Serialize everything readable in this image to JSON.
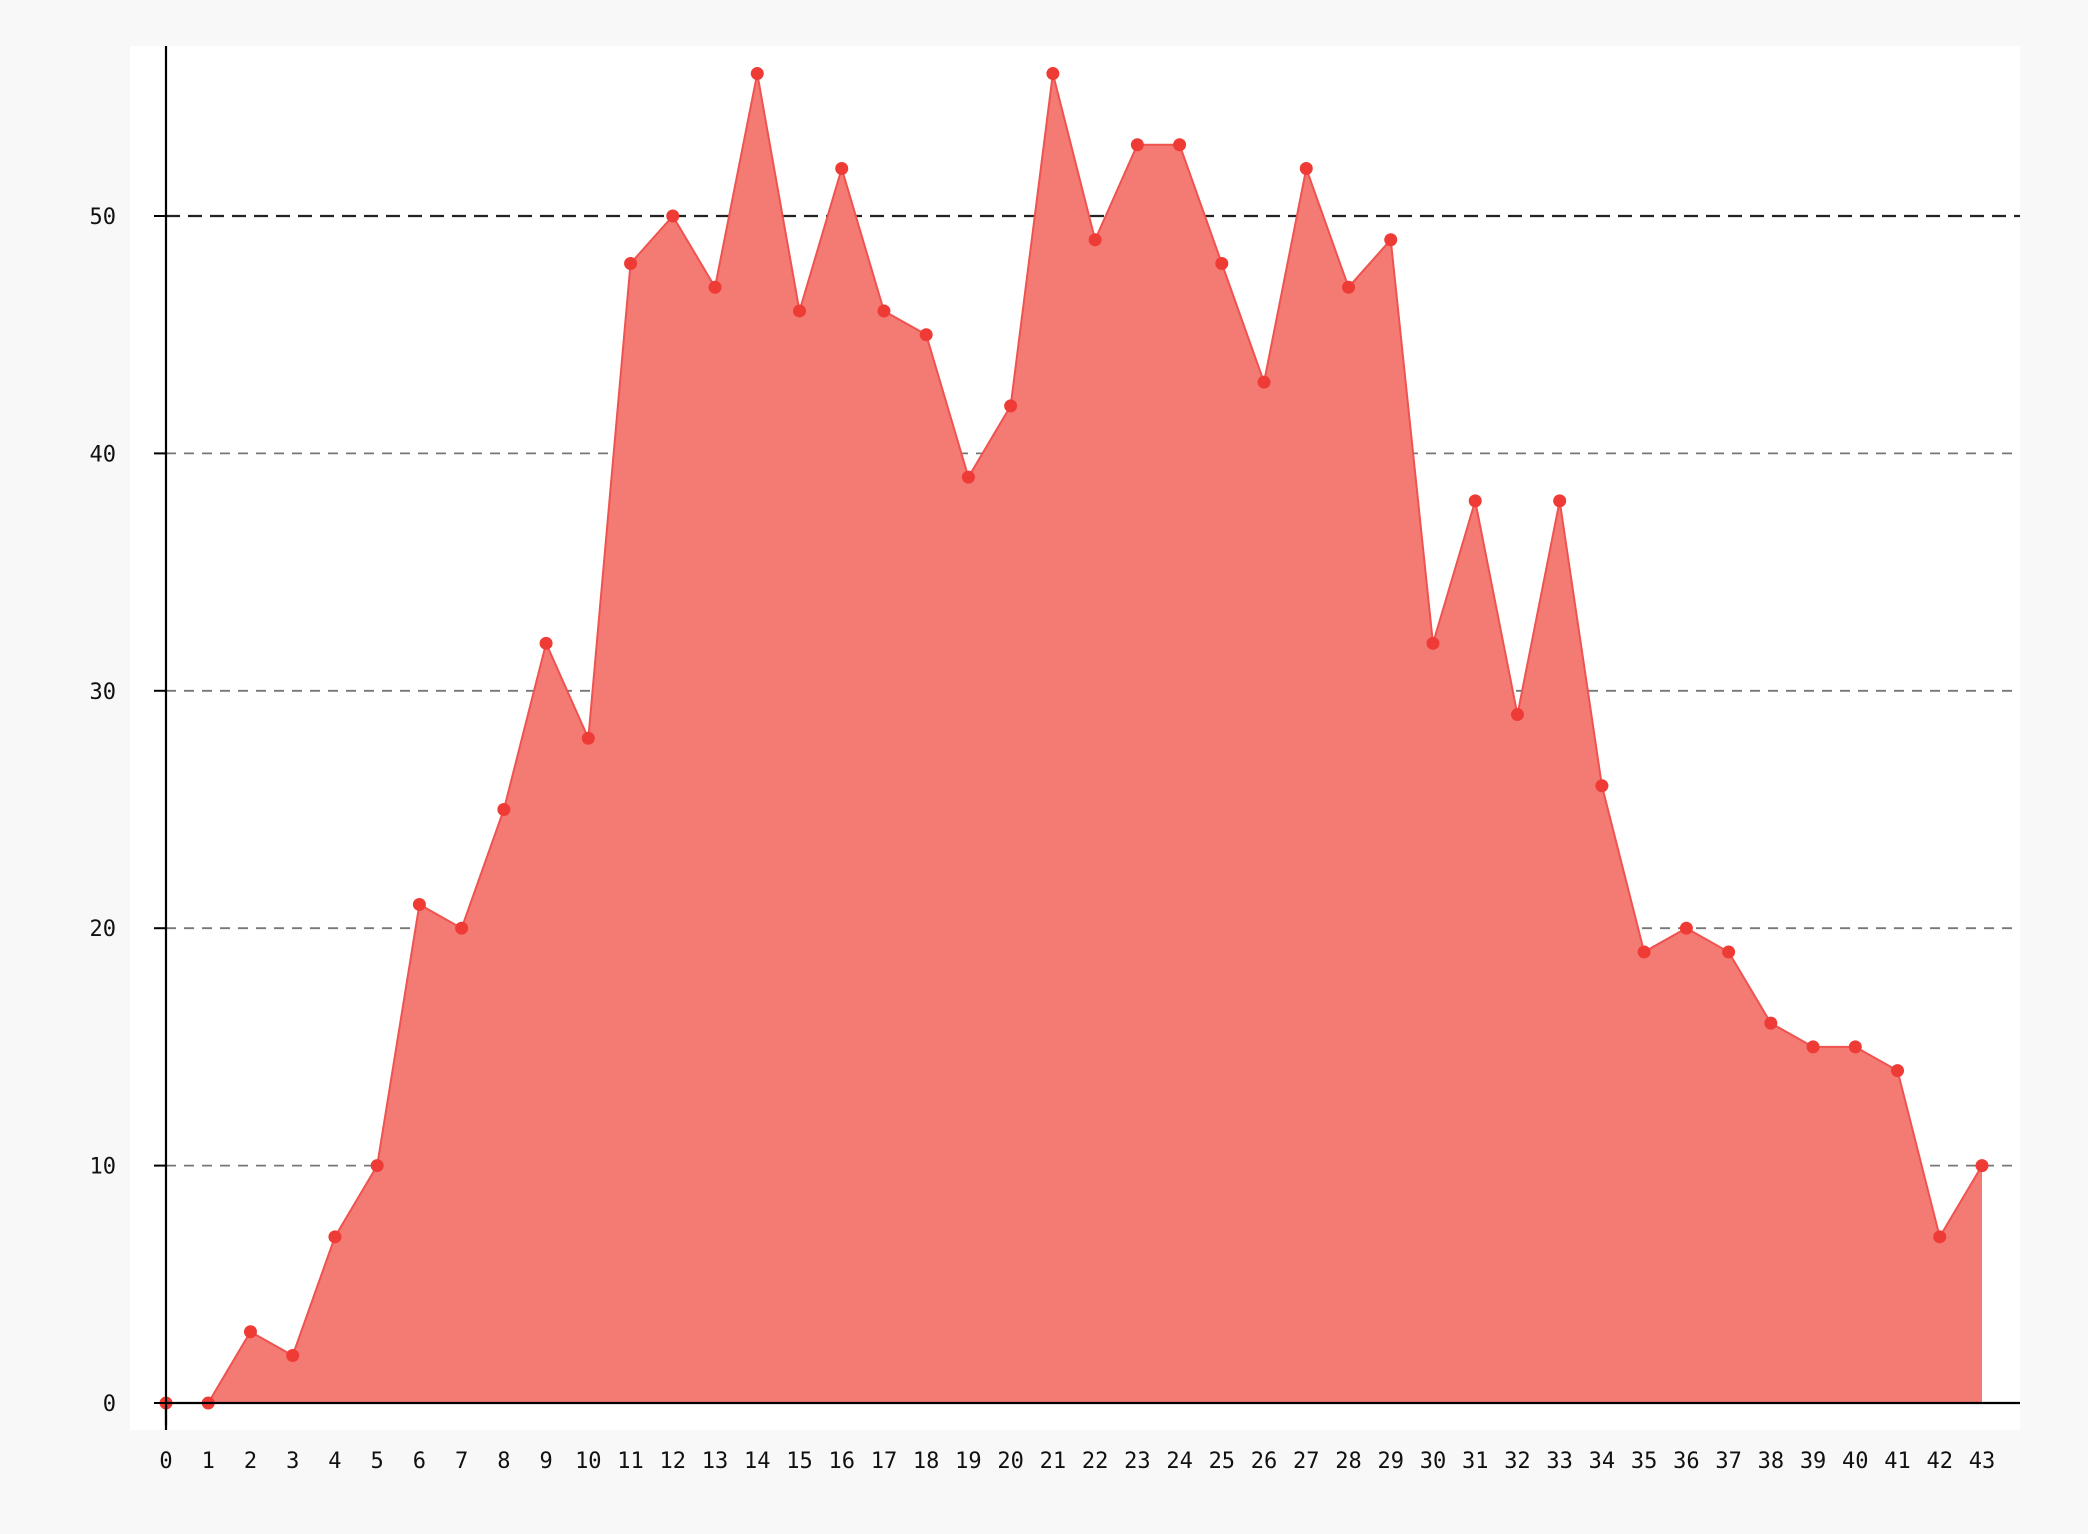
{
  "chart_data": {
    "type": "area",
    "x": [
      0,
      1,
      2,
      3,
      4,
      5,
      6,
      7,
      8,
      9,
      10,
      11,
      12,
      13,
      14,
      15,
      16,
      17,
      18,
      19,
      20,
      21,
      22,
      23,
      24,
      25,
      26,
      27,
      28,
      29,
      30,
      31,
      32,
      33,
      34,
      35,
      36,
      37,
      38,
      39,
      40,
      41,
      42,
      43
    ],
    "categories": [
      "0",
      "1",
      "2",
      "3",
      "4",
      "5",
      "6",
      "7",
      "8",
      "9",
      "10",
      "11",
      "12",
      "13",
      "14",
      "15",
      "16",
      "17",
      "18",
      "19",
      "20",
      "21",
      "22",
      "23",
      "24",
      "25",
      "26",
      "27",
      "28",
      "29",
      "30",
      "31",
      "32",
      "33",
      "34",
      "35",
      "36",
      "37",
      "38",
      "39",
      "40",
      "41",
      "42",
      "43"
    ],
    "series": [
      {
        "values": [
          0,
          0,
          3,
          2,
          7,
          10,
          21,
          20,
          25,
          32,
          28,
          48,
          50,
          47,
          56,
          46,
          52,
          46,
          45,
          39,
          42,
          56,
          49,
          53,
          53,
          48,
          43,
          52,
          47,
          49,
          32,
          38,
          29,
          38,
          26,
          19,
          20,
          19,
          16,
          15,
          15,
          14,
          7,
          10
        ]
      }
    ],
    "yticks": [
      0,
      10,
      20,
      30,
      40,
      50
    ],
    "ylim": [
      -1,
      57
    ],
    "xlim": [
      -0.8,
      44
    ],
    "reference_line": 50,
    "grid": "horizontal-dashed",
    "legend": "none",
    "title": "",
    "xlabel": "",
    "ylabel": "",
    "colors": {
      "fill": "#f47a74",
      "line": "#ef5350",
      "marker": "#ef3b36",
      "axis": "#000000",
      "grid": "#777777",
      "reference": "#222222",
      "plot_background": "#ffffff",
      "page_background": "#f8f8f8",
      "text": "#111111"
    }
  }
}
